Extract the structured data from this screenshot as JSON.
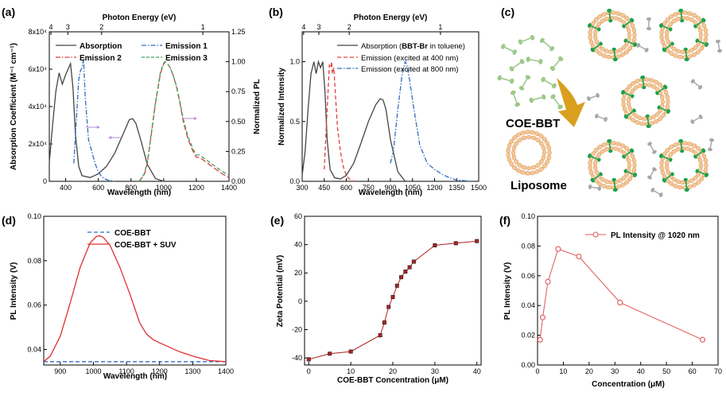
{
  "chart_data": [
    {
      "panel": "(a)",
      "type": "line",
      "xlabel": "Wavelength (nm)",
      "ylabel": "Absorption Coefficient (M⁻¹ cm⁻¹)",
      "ylabel_right": "Normalized PL",
      "top_axis_label": "Photon Energy (eV)",
      "top_ticks": [
        "4",
        "3",
        "2",
        "1"
      ],
      "top_tick_values": [
        4,
        3,
        2,
        1
      ],
      "xlim": [
        300,
        1400
      ],
      "xticks": [
        "400",
        "600",
        "800",
        "1000",
        "1200",
        "1400"
      ],
      "ylim": [
        0,
        80000
      ],
      "yticks": [
        "0",
        "2x10⁴",
        "4x10⁴",
        "6x10⁴",
        "8x10⁴"
      ],
      "ylim_right": [
        0,
        1.25
      ],
      "yticks_right": [
        "0.00",
        "0.25",
        "0.50",
        "0.75",
        "1.00",
        "1.25"
      ],
      "series": [
        {
          "name": "Absorption",
          "axis": "left",
          "color": "#444444",
          "dash": "solid",
          "x": [
            300,
            320,
            340,
            360,
            380,
            400,
            415,
            430,
            445,
            460,
            480,
            500,
            550,
            600,
            650,
            700,
            750,
            790,
            810,
            830,
            860,
            900,
            950,
            1000
          ],
          "y": [
            10000,
            30000,
            48000,
            58000,
            52000,
            57000,
            60000,
            63000,
            50000,
            25000,
            8000,
            3000,
            2000,
            4000,
            8000,
            15000,
            25000,
            33000,
            33500,
            31000,
            22000,
            9000,
            1500,
            0
          ]
        },
        {
          "name": "Emission 1",
          "axis": "right",
          "color": "#2f6fc0",
          "dash": "dashdot",
          "x": [
            450,
            465,
            480,
            490,
            500,
            510,
            520,
            540,
            560,
            580,
            600,
            620,
            640,
            660,
            700
          ],
          "y": [
            0.15,
            0.5,
            0.85,
            0.92,
            0.95,
            1.02,
            0.7,
            0.35,
            0.25,
            0.15,
            0.08,
            0.04,
            0.02,
            0.01,
            0
          ]
        },
        {
          "name": "Emission 2",
          "axis": "right",
          "color": "#d94040",
          "dash": "longdash",
          "x": [
            850,
            880,
            900,
            920,
            950,
            980,
            1000,
            1010,
            1020,
            1040,
            1060,
            1080,
            1100,
            1120,
            1150,
            1180,
            1200,
            1220,
            1250,
            1300,
            1350,
            1400
          ],
          "y": [
            0,
            0.05,
            0.15,
            0.35,
            0.65,
            0.9,
            0.98,
            1.0,
            0.99,
            0.95,
            0.88,
            0.78,
            0.65,
            0.5,
            0.35,
            0.25,
            0.2,
            0.2,
            0.17,
            0.12,
            0.07,
            0.03
          ]
        },
        {
          "name": "Emission 3",
          "axis": "right",
          "color": "#3fa060",
          "dash": "dashed",
          "x": [
            850,
            880,
            900,
            920,
            950,
            980,
            1000,
            1010,
            1020,
            1040,
            1060,
            1080,
            1100,
            1120,
            1150,
            1180,
            1200,
            1220,
            1250,
            1300,
            1350,
            1400
          ],
          "y": [
            0,
            0.06,
            0.16,
            0.36,
            0.66,
            0.91,
            0.99,
            1.0,
            0.99,
            0.95,
            0.88,
            0.79,
            0.66,
            0.52,
            0.37,
            0.27,
            0.22,
            0.22,
            0.19,
            0.14,
            0.09,
            0.05
          ]
        }
      ]
    },
    {
      "panel": "(b)",
      "type": "line",
      "xlabel": "Wavelength (nm)",
      "ylabel": "Normalized Intensity",
      "top_axis_label": "Photon Energy (eV)",
      "top_ticks": [
        "4",
        "3",
        "2",
        "1"
      ],
      "top_tick_values": [
        4,
        3,
        2,
        1
      ],
      "xlim": [
        300,
        1500
      ],
      "xticks": [
        "300",
        "450",
        "600",
        "750",
        "900",
        "1050",
        "1200",
        "1350",
        "1500"
      ],
      "ylim": [
        0,
        1.25
      ],
      "yticks": [
        "0.0",
        "0.5",
        "1.0"
      ],
      "series": [
        {
          "name_prefix": "Absorption (",
          "name_bold": "BBT-Br",
          "name_suffix": " in toluene)",
          "color": "#444444",
          "dash": "solid",
          "x": [
            300,
            320,
            340,
            360,
            380,
            395,
            410,
            425,
            440,
            455,
            470,
            490,
            520,
            560,
            600,
            650,
            700,
            750,
            800,
            830,
            850,
            870,
            900,
            950,
            1000
          ],
          "y": [
            0.05,
            0.25,
            0.6,
            0.9,
            1.0,
            0.9,
            1.0,
            0.95,
            1.0,
            0.75,
            0.35,
            0.1,
            0.03,
            0.02,
            0.05,
            0.15,
            0.32,
            0.5,
            0.64,
            0.69,
            0.68,
            0.6,
            0.35,
            0.08,
            0
          ]
        },
        {
          "name": "Emission (excited at 400 nm)",
          "color": "#e04040",
          "dash": "dashed",
          "x": [
            450,
            470,
            485,
            495,
            500,
            505,
            515,
            525,
            540,
            560,
            580,
            600,
            620,
            650
          ],
          "y": [
            0.1,
            0.6,
            0.97,
            0.95,
            1.0,
            0.9,
            0.95,
            0.75,
            0.45,
            0.25,
            0.12,
            0.05,
            0.02,
            0
          ]
        },
        {
          "name": "Emission (excited at 800 nm)",
          "color": "#2f6fc0",
          "dash": "dashdot",
          "x": [
            900,
            920,
            950,
            980,
            1000,
            1010,
            1030,
            1060,
            1100,
            1150,
            1200,
            1250,
            1300,
            1350,
            1400,
            1450
          ],
          "y": [
            0.15,
            0.25,
            0.6,
            0.9,
            1.0,
            0.98,
            0.85,
            0.6,
            0.3,
            0.15,
            0.1,
            0.06,
            0.03,
            0.01,
            0.005,
            0
          ]
        }
      ]
    },
    {
      "panel": "(d)",
      "type": "line",
      "xlabel": "Wavelength (nm)",
      "ylabel": "PL Intensity (V)",
      "xlim": [
        850,
        1400
      ],
      "xticks": [
        "900",
        "1000",
        "1100",
        "1200",
        "1300",
        "1400"
      ],
      "ylim": [
        0.033,
        0.1
      ],
      "yticks": [
        "0.04",
        "0.06",
        "0.08",
        "0.10"
      ],
      "series": [
        {
          "name": "COE-BBT",
          "color": "#2f6fc0",
          "dash": "dashed",
          "x": [
            850,
            900,
            1000,
            1100,
            1200,
            1300,
            1400
          ],
          "y": [
            0.0345,
            0.0345,
            0.0345,
            0.0345,
            0.0345,
            0.0345,
            0.0345
          ]
        },
        {
          "name": "COE-BBT + SUV",
          "color": "#e03030",
          "dash": "solid",
          "x": [
            850,
            870,
            900,
            930,
            960,
            990,
            1010,
            1020,
            1030,
            1050,
            1080,
            1110,
            1140,
            1160,
            1180,
            1200,
            1230,
            1260,
            1300,
            1350,
            1400
          ],
          "y": [
            0.0345,
            0.037,
            0.046,
            0.061,
            0.077,
            0.088,
            0.091,
            0.0912,
            0.0905,
            0.087,
            0.077,
            0.065,
            0.052,
            0.047,
            0.0445,
            0.043,
            0.041,
            0.039,
            0.037,
            0.035,
            0.0345
          ]
        }
      ]
    },
    {
      "panel": "(e)",
      "type": "scatter",
      "xlabel_prefix": "COE-BBT Concentration (",
      "xlabel_unit": "μM",
      "xlabel_suffix": ")",
      "ylabel": "Zeta Potential (mV)",
      "xlim": [
        -1,
        41
      ],
      "xticks": [
        "0",
        "10",
        "20",
        "30",
        "40"
      ],
      "ylim": [
        -45,
        60
      ],
      "yticks": [
        "-40",
        "-20",
        "0",
        "20",
        "40",
        "60"
      ],
      "series": [
        {
          "name": "",
          "color": "#b02020",
          "x": [
            0,
            5,
            10,
            17,
            18,
            19,
            20,
            21,
            22,
            23,
            24,
            25,
            30,
            35,
            40
          ],
          "y": [
            -41,
            -37,
            -35.5,
            -24,
            -15,
            -4,
            3,
            11,
            17,
            21,
            24,
            28,
            39.5,
            41,
            42.5
          ],
          "err": [
            1.5,
            1,
            1,
            1.5,
            1.5,
            1,
            1,
            1,
            1,
            1,
            1,
            1,
            1,
            1,
            1
          ]
        }
      ]
    },
    {
      "panel": "(f)",
      "type": "line",
      "xlabel_prefix": "Concentration (",
      "xlabel_unit": "μM",
      "xlabel_suffix": ")",
      "ylabel": "PL Intensity (V)",
      "xlim": [
        0,
        70
      ],
      "xticks": [
        "0",
        "10",
        "20",
        "30",
        "40",
        "50",
        "60",
        "70"
      ],
      "ylim": [
        0,
        0.1
      ],
      "yticks": [
        "0.00",
        "0.02",
        "0.04",
        "0.06",
        "0.08",
        "0.10"
      ],
      "series": [
        {
          "name": "PL Intensity @ 1020 nm",
          "color": "#e05555",
          "x": [
            1,
            2,
            4,
            8,
            16,
            32,
            64
          ],
          "y": [
            0.017,
            0.032,
            0.056,
            0.078,
            0.073,
            0.042,
            0.017
          ]
        }
      ]
    }
  ],
  "diagram": {
    "panel": "(c)",
    "label_polymer": "COE-BBT",
    "label_vesicle": "Liposome",
    "colors": {
      "polymer": "#9dc98a",
      "lipid": "#f4c89a",
      "lipid_stroke": "#d8924f",
      "arrow": "#d9a020",
      "free_molecule": "#a8a8a8",
      "inserted": "#1aa14b"
    }
  }
}
